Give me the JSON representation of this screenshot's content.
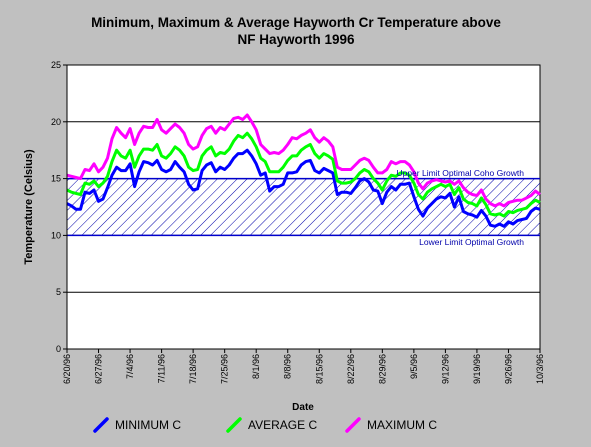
{
  "chart_data": {
    "type": "line",
    "title_line1": "Minimum, Maximum & Average Hayworth Cr Temperature above",
    "title_line2": "NF Hayworth 1996",
    "xlabel": "Date",
    "ylabel": "Temperature (Celsius)",
    "ylim": [
      0,
      25
    ],
    "yticks": [
      0,
      5,
      10,
      15,
      20,
      25
    ],
    "xlim": [
      0,
      105
    ],
    "xticks": [
      {
        "day": 0,
        "label": "6/20/96"
      },
      {
        "day": 7,
        "label": "6/27/96"
      },
      {
        "day": 14,
        "label": "7/4/96"
      },
      {
        "day": 21,
        "label": "7/11/96"
      },
      {
        "day": 28,
        "label": "7/18/96"
      },
      {
        "day": 35,
        "label": "7/25/96"
      },
      {
        "day": 42,
        "label": "8/1/96"
      },
      {
        "day": 49,
        "label": "8/8/96"
      },
      {
        "day": 56,
        "label": "8/15/96"
      },
      {
        "day": 63,
        "label": "8/22/96"
      },
      {
        "day": 70,
        "label": "8/29/96"
      },
      {
        "day": 77,
        "label": "9/5/96"
      },
      {
        "day": 84,
        "label": "9/12/96"
      },
      {
        "day": 91,
        "label": "9/19/96"
      },
      {
        "day": 98,
        "label": "9/26/96"
      },
      {
        "day": 105,
        "label": "10/3/96"
      }
    ],
    "grid": "horizontal",
    "legend_position": "bottom",
    "band": {
      "low": 10,
      "high": 15,
      "upper_label": "Upper Limit Optimal Coho Growth",
      "lower_label": "Lower Limit Optimal Growth"
    },
    "series": [
      {
        "name": "MINIMUM C",
        "color": "#0000ff",
        "values": [
          12.8,
          12.6,
          12.3,
          12.3,
          13.8,
          13.7,
          14.0,
          13.0,
          13.2,
          14.2,
          15.3,
          16.0,
          15.7,
          15.7,
          16.3,
          14.3,
          15.6,
          16.5,
          16.4,
          16.2,
          16.6,
          15.8,
          15.6,
          15.8,
          16.5,
          16.0,
          15.6,
          14.5,
          14.0,
          14.1,
          15.7,
          16.2,
          16.4,
          15.6,
          16.0,
          15.8,
          16.2,
          16.8,
          17.2,
          17.2,
          17.5,
          17.0,
          16.3,
          15.3,
          15.5,
          13.9,
          14.3,
          14.3,
          14.5,
          15.5,
          15.5,
          15.6,
          16.2,
          16.5,
          16.6,
          15.7,
          15.5,
          15.9,
          15.7,
          15.5,
          13.6,
          13.8,
          13.8,
          13.7,
          14.2,
          14.8,
          15.0,
          14.7,
          14.0,
          13.9,
          12.8,
          13.8,
          14.3,
          14.0,
          14.5,
          14.5,
          14.6,
          13.4,
          12.3,
          11.7,
          12.4,
          12.8,
          13.2,
          13.4,
          13.3,
          13.7,
          12.5,
          13.4,
          12.1,
          11.9,
          11.8,
          11.6,
          12.2,
          11.7,
          10.9,
          10.8,
          11.0,
          10.8,
          11.2,
          11.0,
          11.3,
          11.4,
          11.5,
          12.1,
          12.4,
          12.3
        ]
      },
      {
        "name": "AVERAGE C",
        "color": "#00ff00",
        "values": [
          14.0,
          13.8,
          13.7,
          13.6,
          14.6,
          14.5,
          14.8,
          14.3,
          14.6,
          15.2,
          16.5,
          17.5,
          17.0,
          16.8,
          17.5,
          16.0,
          17.0,
          17.6,
          17.6,
          17.5,
          18.0,
          17.0,
          16.8,
          17.2,
          17.8,
          17.5,
          17.0,
          16.0,
          15.7,
          15.8,
          17.0,
          17.5,
          17.8,
          17.0,
          17.3,
          17.2,
          17.6,
          18.3,
          18.8,
          18.6,
          19.0,
          18.5,
          17.8,
          16.8,
          16.5,
          15.6,
          15.6,
          15.6,
          16.0,
          16.6,
          17.0,
          17.0,
          17.5,
          17.8,
          18.0,
          17.2,
          16.8,
          17.2,
          17.0,
          16.7,
          14.8,
          14.6,
          14.6,
          14.7,
          15.0,
          15.5,
          15.8,
          15.6,
          15.0,
          14.6,
          14.0,
          14.8,
          15.3,
          15.2,
          15.5,
          15.5,
          15.3,
          14.6,
          13.6,
          13.2,
          13.8,
          14.1,
          14.3,
          14.5,
          14.3,
          14.5,
          13.6,
          14.2,
          13.2,
          12.9,
          12.8,
          12.6,
          13.3,
          12.7,
          11.9,
          11.8,
          11.9,
          11.7,
          12.1,
          12.0,
          12.2,
          12.3,
          12.4,
          12.8,
          13.1,
          12.9
        ]
      },
      {
        "name": "MAXIMUM C",
        "color": "#ff00ff",
        "values": [
          15.3,
          15.2,
          15.1,
          15.0,
          15.8,
          15.7,
          16.3,
          15.6,
          16.0,
          16.8,
          18.5,
          19.5,
          19.0,
          18.6,
          19.4,
          18.0,
          19.0,
          19.6,
          19.5,
          19.5,
          20.2,
          19.3,
          19.0,
          19.4,
          19.8,
          19.5,
          19.0,
          18.0,
          17.6,
          17.8,
          18.8,
          19.4,
          19.6,
          19.0,
          19.5,
          19.3,
          19.8,
          20.3,
          20.4,
          20.2,
          20.6,
          20.0,
          19.3,
          18.0,
          17.6,
          17.2,
          17.3,
          17.2,
          17.5,
          18.0,
          18.6,
          18.5,
          18.8,
          19.0,
          19.3,
          18.6,
          18.2,
          18.6,
          18.3,
          17.8,
          16.0,
          15.8,
          15.8,
          15.8,
          16.2,
          16.6,
          16.8,
          16.6,
          16.0,
          15.5,
          15.5,
          15.8,
          16.5,
          16.3,
          16.5,
          16.5,
          16.2,
          15.6,
          14.6,
          14.1,
          14.6,
          14.8,
          14.9,
          14.8,
          14.7,
          14.8,
          14.5,
          14.8,
          14.2,
          13.8,
          13.6,
          13.5,
          14.0,
          13.2,
          12.8,
          12.6,
          12.8,
          12.6,
          12.9,
          13.0,
          13.1,
          13.1,
          13.3,
          13.5,
          13.9,
          13.6
        ]
      }
    ]
  }
}
